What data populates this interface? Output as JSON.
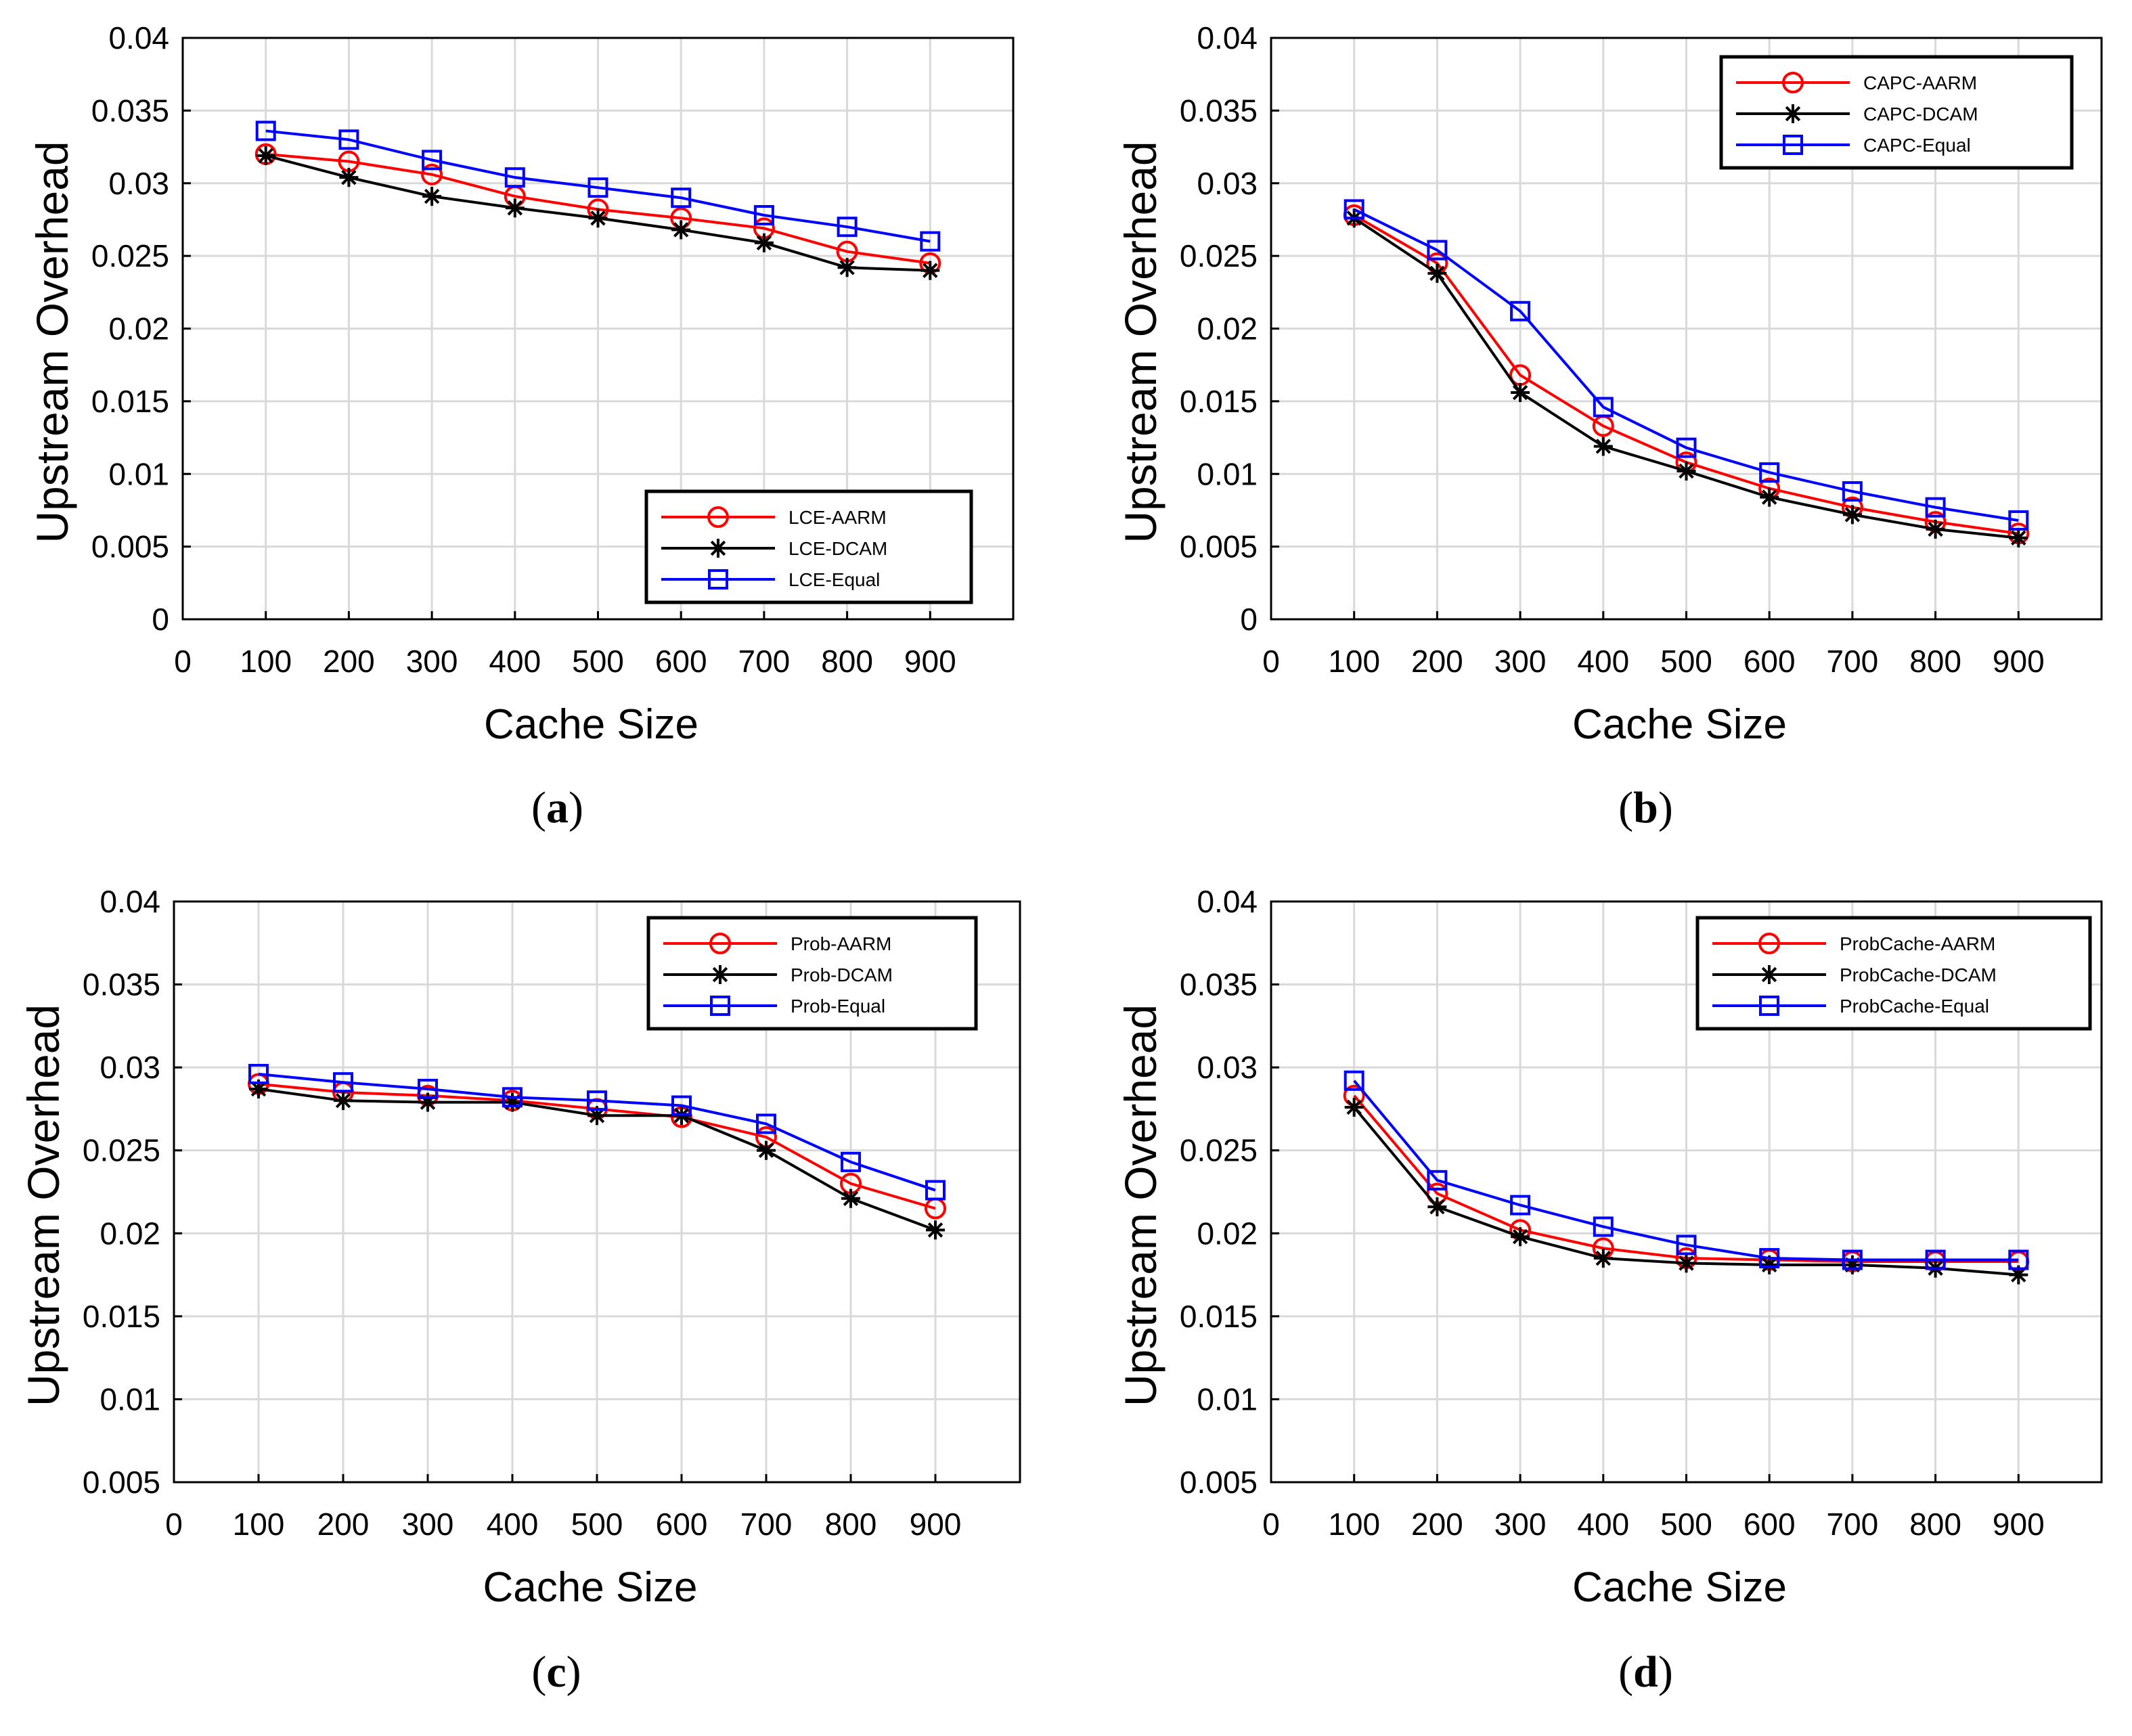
{
  "figure": {
    "panels": [
      "a",
      "b",
      "c",
      "d"
    ]
  },
  "colors": {
    "aarm": "#ff0000",
    "dcam": "#000000",
    "equal": "#0000ff",
    "grid": "#d9d9d9",
    "axis": "#000000"
  },
  "chart_data": [
    {
      "type": "line",
      "panel": "a",
      "caption": "(a)",
      "xlabel": "Cache Size",
      "ylabel": "Upstream  Overhead",
      "xlim": [
        0,
        1000
      ],
      "ylim": [
        0,
        0.04
      ],
      "xticks": [
        0,
        100,
        200,
        300,
        400,
        500,
        600,
        700,
        800,
        900
      ],
      "yticks": [
        0,
        0.005,
        0.01,
        0.015,
        0.02,
        0.025,
        0.03,
        0.035,
        0.04
      ],
      "ytick_labels": [
        "0",
        "0.005",
        "0.01",
        "0.015",
        "0.02",
        "0.025",
        "0.03",
        "0.035",
        "0.04"
      ],
      "grid": true,
      "legend_position": "bottom-right",
      "x": [
        100,
        200,
        300,
        400,
        500,
        600,
        700,
        800,
        900
      ],
      "series": [
        {
          "name": "LCE-AARM",
          "marker": "circle",
          "color_key": "aarm",
          "values": [
            0.032,
            0.0315,
            0.0306,
            0.0291,
            0.0282,
            0.0276,
            0.0269,
            0.0253,
            0.0245
          ]
        },
        {
          "name": "LCE-DCAM",
          "marker": "star",
          "color_key": "dcam",
          "values": [
            0.0319,
            0.0304,
            0.0291,
            0.0283,
            0.0276,
            0.0268,
            0.0259,
            0.0242,
            0.024
          ]
        },
        {
          "name": "LCE-Equal",
          "marker": "square",
          "color_key": "equal",
          "values": [
            0.0336,
            0.033,
            0.0316,
            0.0304,
            0.0297,
            0.029,
            0.0278,
            0.027,
            0.026
          ]
        }
      ]
    },
    {
      "type": "line",
      "panel": "b",
      "caption": "(b)",
      "xlabel": "Cache Size",
      "ylabel": "Upstream  Overhead",
      "xlim": [
        0,
        1000
      ],
      "ylim": [
        0,
        0.04
      ],
      "xticks": [
        0,
        100,
        200,
        300,
        400,
        500,
        600,
        700,
        800,
        900
      ],
      "yticks": [
        0,
        0.005,
        0.01,
        0.015,
        0.02,
        0.025,
        0.03,
        0.035,
        0.04
      ],
      "ytick_labels": [
        "0",
        "0.005",
        "0.01",
        "0.015",
        "0.02",
        "0.025",
        "0.03",
        "0.035",
        "0.04"
      ],
      "grid": true,
      "legend_position": "top-right",
      "x": [
        100,
        200,
        300,
        400,
        500,
        600,
        700,
        800,
        900
      ],
      "series": [
        {
          "name": "CAPC-AARM",
          "marker": "circle",
          "color_key": "aarm",
          "values": [
            0.0278,
            0.0245,
            0.0168,
            0.0133,
            0.0108,
            0.009,
            0.0077,
            0.0067,
            0.0059
          ]
        },
        {
          "name": "CAPC-DCAM",
          "marker": "star",
          "color_key": "dcam",
          "values": [
            0.0276,
            0.0238,
            0.0156,
            0.0119,
            0.0102,
            0.0084,
            0.0072,
            0.0062,
            0.0056
          ]
        },
        {
          "name": "CAPC-Equal",
          "marker": "square",
          "color_key": "equal",
          "values": [
            0.0282,
            0.0254,
            0.0212,
            0.0146,
            0.0118,
            0.0101,
            0.0088,
            0.0077,
            0.0068
          ]
        }
      ]
    },
    {
      "type": "line",
      "panel": "c",
      "caption": "(c)",
      "xlabel": "Cache Size",
      "ylabel": "Upstream  Overhead",
      "xlim": [
        0,
        1000
      ],
      "ylim": [
        0.005,
        0.04
      ],
      "xticks": [
        0,
        100,
        200,
        300,
        400,
        500,
        600,
        700,
        800,
        900
      ],
      "yticks": [
        0.005,
        0.01,
        0.015,
        0.02,
        0.025,
        0.03,
        0.035,
        0.04
      ],
      "ytick_labels": [
        "0.005",
        "0.01",
        "0.015",
        "0.02",
        "0.025",
        "0.03",
        "0.035",
        "0.04"
      ],
      "grid": true,
      "legend_position": "top-right",
      "x": [
        100,
        200,
        300,
        400,
        500,
        600,
        700,
        800,
        900
      ],
      "series": [
        {
          "name": "Prob-AARM",
          "marker": "circle",
          "color_key": "aarm",
          "values": [
            0.029,
            0.0285,
            0.0283,
            0.028,
            0.0275,
            0.027,
            0.0258,
            0.023,
            0.0215
          ]
        },
        {
          "name": "Prob-DCAM",
          "marker": "star",
          "color_key": "dcam",
          "values": [
            0.0287,
            0.028,
            0.0279,
            0.0279,
            0.0271,
            0.0271,
            0.025,
            0.0221,
            0.0202
          ]
        },
        {
          "name": "Prob-Equal",
          "marker": "square",
          "color_key": "equal",
          "values": [
            0.0296,
            0.0291,
            0.0287,
            0.0282,
            0.028,
            0.0277,
            0.0266,
            0.0243,
            0.0226
          ]
        }
      ]
    },
    {
      "type": "line",
      "panel": "d",
      "caption": "(d)",
      "xlabel": "Cache Size",
      "ylabel": "Upstream  Overhead",
      "xlim": [
        0,
        1000
      ],
      "ylim": [
        0.005,
        0.04
      ],
      "xticks": [
        0,
        100,
        200,
        300,
        400,
        500,
        600,
        700,
        800,
        900
      ],
      "yticks": [
        0.005,
        0.01,
        0.015,
        0.02,
        0.025,
        0.03,
        0.035,
        0.04
      ],
      "ytick_labels": [
        "0.005",
        "0.01",
        "0.015",
        "0.02",
        "0.025",
        "0.03",
        "0.035",
        "0.04"
      ],
      "grid": true,
      "legend_position": "top-right",
      "x": [
        100,
        200,
        300,
        400,
        500,
        600,
        700,
        800,
        900
      ],
      "series": [
        {
          "name": "ProbCache-AARM",
          "marker": "circle",
          "color_key": "aarm",
          "values": [
            0.0283,
            0.0224,
            0.0202,
            0.0191,
            0.0185,
            0.0184,
            0.0183,
            0.0183,
            0.0183
          ]
        },
        {
          "name": "ProbCache-DCAM",
          "marker": "star",
          "color_key": "dcam",
          "values": [
            0.0276,
            0.0216,
            0.0198,
            0.0185,
            0.0182,
            0.0181,
            0.0181,
            0.0179,
            0.0175
          ]
        },
        {
          "name": "ProbCache-Equal",
          "marker": "square",
          "color_key": "equal",
          "values": [
            0.0292,
            0.0232,
            0.0217,
            0.0204,
            0.0193,
            0.0185,
            0.0184,
            0.0184,
            0.0184
          ]
        }
      ]
    }
  ]
}
